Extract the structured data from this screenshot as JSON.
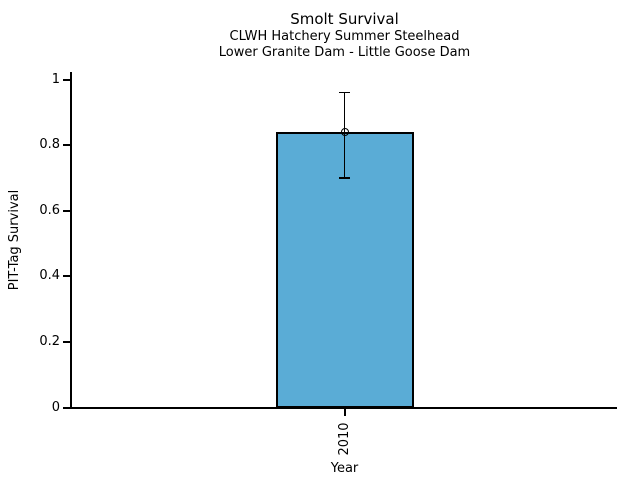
{
  "chart_data": {
    "type": "bar",
    "title": "Smolt Survival",
    "subtitle_lines": [
      "CLWH Hatchery Summer Steelhead",
      "Lower Granite Dam - Little Goose Dam"
    ],
    "xlabel": "Year",
    "ylabel": "PIT-Tag Survival",
    "categories": [
      "2010"
    ],
    "values": [
      0.84
    ],
    "error_low": [
      0.7
    ],
    "error_high": [
      0.96
    ],
    "ylim": [
      0,
      1
    ],
    "ytick_labels": [
      "0",
      "0.2",
      "0.4",
      "0.6",
      "0.8",
      "1"
    ],
    "grid": false,
    "legend": false,
    "marker": "open-circle",
    "bar_fill_color": "#5AACD6",
    "bar_border_color": "#000000",
    "axis_color": "#000000",
    "background_color": "#FFFFFF"
  }
}
